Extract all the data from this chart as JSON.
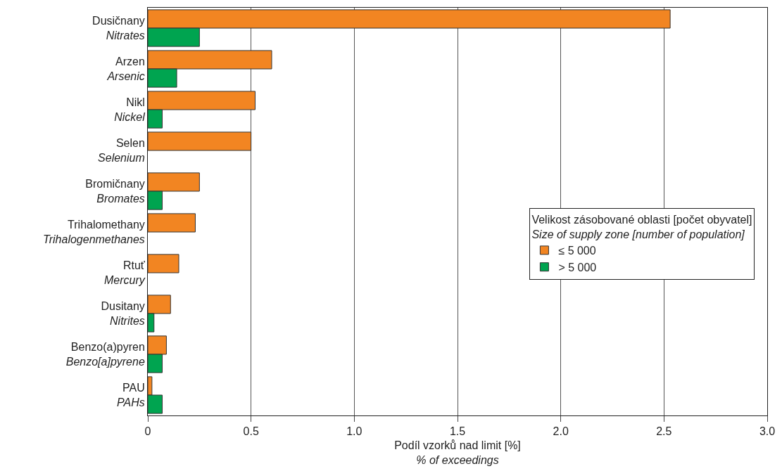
{
  "chart_data": {
    "type": "bar",
    "orientation": "horizontal",
    "categories": [
      "Dusičnany\nNitrates",
      "Arzen\nArsenic",
      "Nikl\nNickel",
      "Selen\nSelenium",
      "Bromičnany\nBromates",
      "Trihalomethany\nTrihalogenmethanes",
      "Rtuť\nMercury",
      "Dusitany\nNitrites",
      "Benzo(a)pyren\nBenzo[a]pyrene",
      "PAU\nPAHs"
    ],
    "series": [
      {
        "name": "≤ 5 000",
        "color": "#f28522",
        "values": [
          2.53,
          0.6,
          0.52,
          0.5,
          0.25,
          0.23,
          0.15,
          0.11,
          0.09,
          0.02
        ]
      },
      {
        "name": "> 5 000",
        "color": "#00a450",
        "values": [
          0.25,
          0.14,
          0.07,
          null,
          0.07,
          null,
          null,
          0.03,
          0.07,
          0.07
        ]
      }
    ],
    "xlabel": "Podíl vzorků nad limit [%]\n% of exceedings",
    "legend_title": "Velikost zásobované oblasti [počet obyvatel]\nSize of supply zone [number of population]",
    "xlim": [
      0,
      3
    ],
    "xticks": [
      0,
      0.5,
      {
        "value": 1,
        "label": "1.0"
      },
      1.5,
      {
        "value": 2,
        "label": "2.0"
      },
      2.5,
      {
        "value": 3,
        "label": "3.0"
      }
    ],
    "grid": "x",
    "legend": "right"
  }
}
